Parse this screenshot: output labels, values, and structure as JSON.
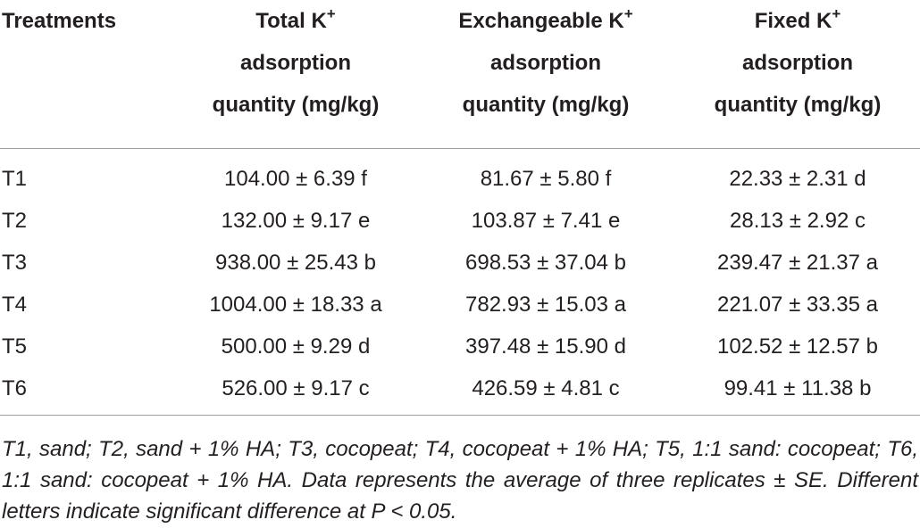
{
  "table": {
    "headers": {
      "treatments": [
        "Treatments"
      ],
      "total": {
        "line1_text": "Total K",
        "line1_sup": "+",
        "line2": "adsorption",
        "line3": "quantity (mg/kg)"
      },
      "exchangeable": {
        "line1_text": "Exchangeable K",
        "line1_sup": "+",
        "line2": "adsorption",
        "line3": "quantity (mg/kg)"
      },
      "fixed": {
        "line1_text": "Fixed K",
        "line1_sup": "+",
        "line2": "adsorption",
        "line3": "quantity (mg/kg)"
      }
    },
    "rows": [
      {
        "treatment": "T1",
        "total": "104.00 ± 6.39 f",
        "exchangeable": "81.67 ± 5.80 f",
        "fixed": "22.33 ± 2.31 d"
      },
      {
        "treatment": "T2",
        "total": "132.00 ± 9.17 e",
        "exchangeable": "103.87 ± 7.41 e",
        "fixed": "28.13 ± 2.92 c"
      },
      {
        "treatment": "T3",
        "total": "938.00 ± 25.43 b",
        "exchangeable": "698.53 ± 37.04 b",
        "fixed": "239.47 ± 21.37 a"
      },
      {
        "treatment": "T4",
        "total": "1004.00 ± 18.33 a",
        "exchangeable": "782.93 ± 15.03 a",
        "fixed": "221.07 ± 33.35 a"
      },
      {
        "treatment": "T5",
        "total": "500.00 ± 9.29 d",
        "exchangeable": "397.48 ± 15.90 d",
        "fixed": "102.52 ± 12.57 b"
      },
      {
        "treatment": "T6",
        "total": "526.00 ± 9.17 c",
        "exchangeable": "426.59 ± 4.81 c",
        "fixed": "99.41 ± 11.38 b"
      }
    ]
  },
  "footnote": "T1, sand; T2, sand + 1% HA; T3, cocopeat; T4, cocopeat + 1% HA; T5, 1:1 sand: cocopeat; T6, 1:1 sand: cocopeat + 1% HA. Data represents the average of three replicates ± SE. Different letters indicate significant difference at P < 0.05."
}
